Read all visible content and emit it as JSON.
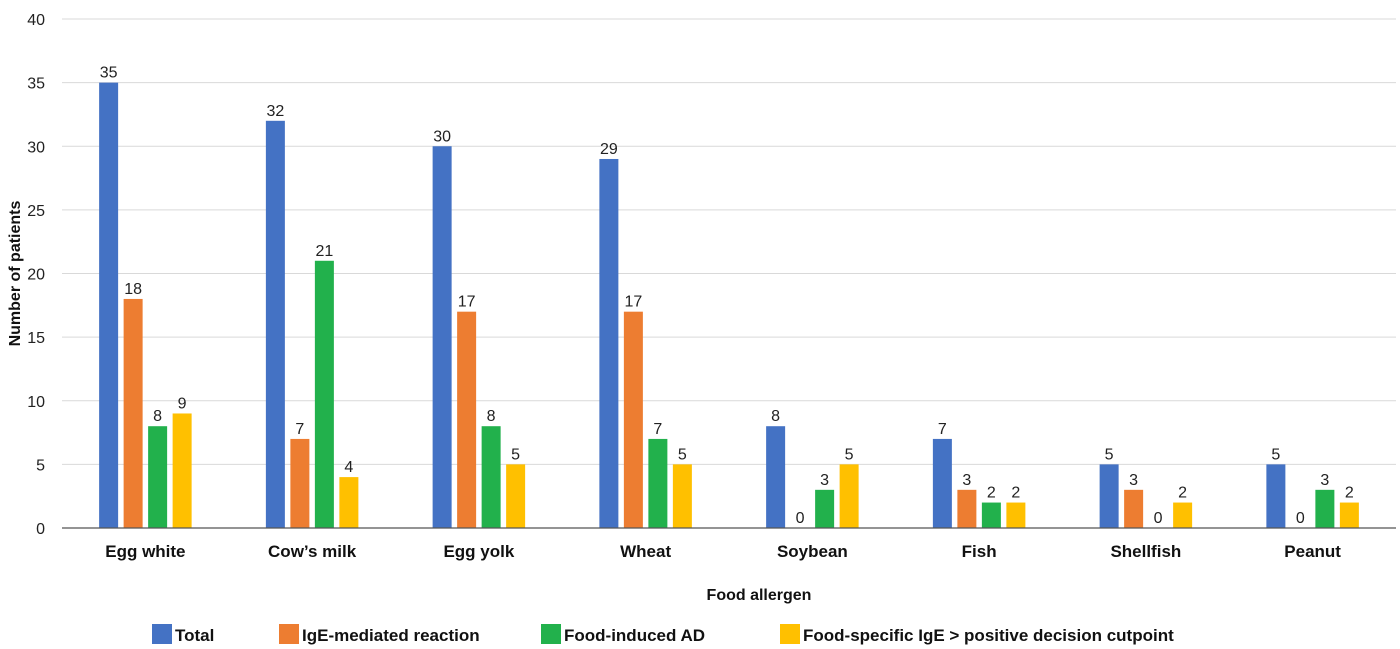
{
  "chart_data": {
    "type": "bar",
    "xlabel": "Food allergen",
    "ylabel": "Number of patients",
    "ylim": [
      0,
      40
    ],
    "yticks": [
      0,
      5,
      10,
      15,
      20,
      25,
      30,
      35,
      40
    ],
    "grid": "horizontal",
    "legend_position": "bottom",
    "categories": [
      "Egg white",
      "Cow’s milk",
      "Egg yolk",
      "Wheat",
      "Soybean",
      "Fish",
      "Shellfish",
      "Peanut"
    ],
    "series": [
      {
        "name": "Total",
        "color": "#4472C4",
        "values": [
          35,
          32,
          30,
          29,
          8,
          7,
          5,
          5
        ]
      },
      {
        "name": "IgE-mediated reaction",
        "color": "#ED7D31",
        "values": [
          18,
          7,
          17,
          17,
          0,
          3,
          3,
          0
        ]
      },
      {
        "name": "Food-induced AD",
        "color": "#22B14C",
        "values": [
          8,
          21,
          8,
          7,
          3,
          2,
          0,
          3
        ]
      },
      {
        "name": "Food-specific IgE > positive decision cutpoint",
        "color": "#FFC000",
        "values": [
          9,
          4,
          5,
          5,
          5,
          2,
          2,
          2
        ]
      }
    ]
  }
}
